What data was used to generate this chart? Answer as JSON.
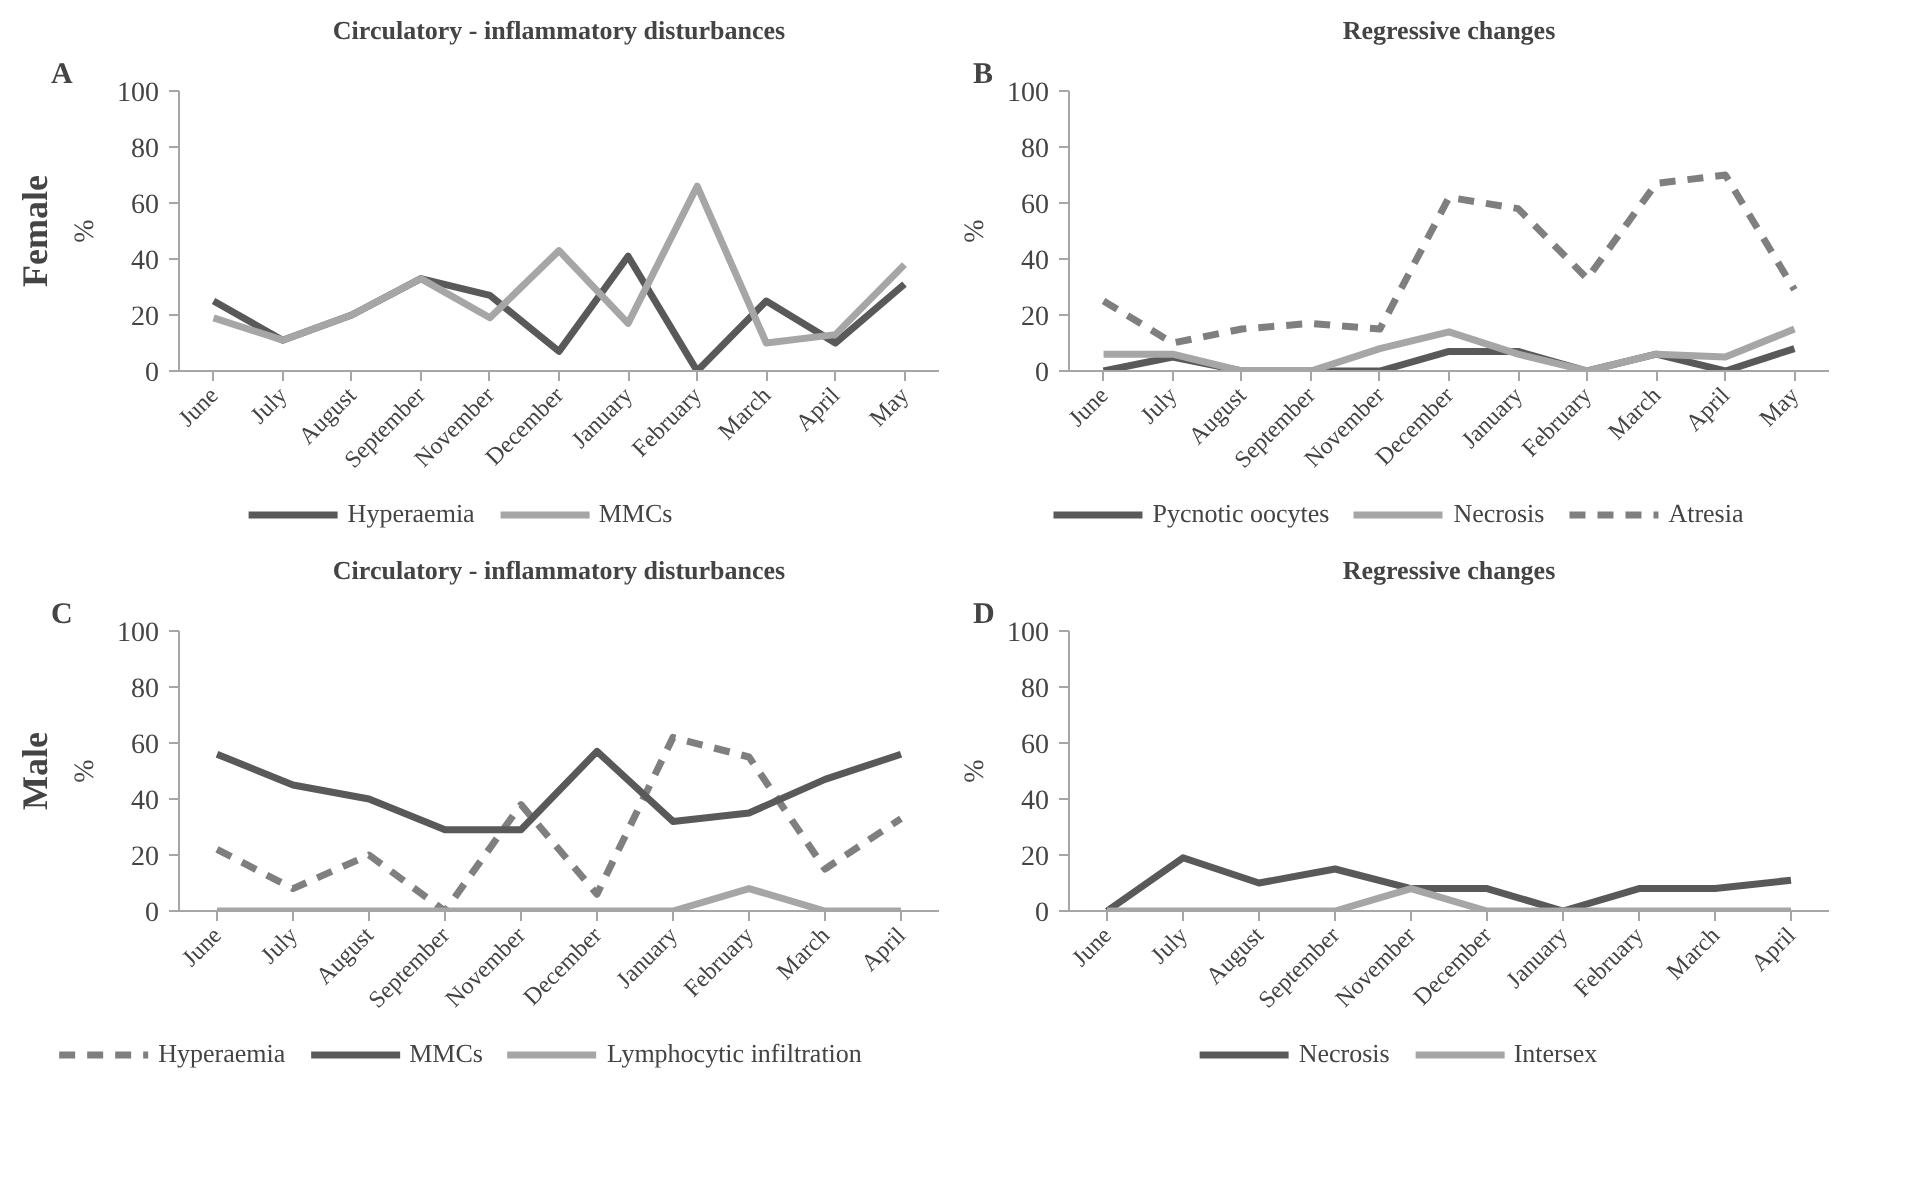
{
  "chart_data": [
    {
      "type": "line",
      "title": "Circulatory - inflammatory disturbances",
      "ylabel": "%",
      "annotations": [
        "A",
        "Female"
      ],
      "categories": [
        "June",
        "July",
        "August",
        "September",
        "November",
        "December",
        "January",
        "February",
        "March",
        "April",
        "May"
      ],
      "ylim": [
        0,
        100
      ],
      "yticks": [
        0,
        20,
        40,
        60,
        80,
        100
      ],
      "grid": false,
      "legend": "bottom",
      "series": [
        {
          "name": "Hyperaemia",
          "color": "#595959",
          "line_style": "solid",
          "values": [
            25,
            11,
            20,
            33,
            27,
            7,
            41,
            0,
            25,
            10,
            31
          ]
        },
        {
          "name": "MMCs",
          "color": "#a6a6a6",
          "line_style": "solid",
          "values": [
            19,
            11,
            20,
            33,
            19,
            43,
            17,
            66,
            10,
            13,
            38
          ]
        }
      ]
    },
    {
      "type": "line",
      "title": "Regressive changes",
      "ylabel": "%",
      "annotations": [
        "B"
      ],
      "categories": [
        "June",
        "July",
        "August",
        "September",
        "November",
        "December",
        "January",
        "February",
        "March",
        "April",
        "May"
      ],
      "ylim": [
        0,
        100
      ],
      "yticks": [
        0,
        20,
        40,
        60,
        80,
        100
      ],
      "grid": false,
      "legend": "bottom",
      "series": [
        {
          "name": "Pycnotic oocytes",
          "color": "#595959",
          "line_style": "solid",
          "values": [
            0,
            5,
            0,
            0,
            0,
            7,
            7,
            0,
            6,
            0,
            8
          ]
        },
        {
          "name": "Necrosis",
          "color": "#a6a6a6",
          "line_style": "solid",
          "values": [
            6,
            6,
            0,
            0,
            8,
            14,
            6,
            0,
            6,
            5,
            15
          ]
        },
        {
          "name": "Atresia",
          "color": "#7f7f7f",
          "line_style": "dashed",
          "values": [
            25,
            10,
            15,
            17,
            15,
            62,
            58,
            33,
            67,
            70,
            29
          ]
        }
      ]
    },
    {
      "type": "line",
      "title": "Circulatory - inflammatory disturbances",
      "ylabel": "%",
      "annotations": [
        "C",
        "Male"
      ],
      "categories": [
        "June",
        "July",
        "August",
        "September",
        "November",
        "December",
        "January",
        "February",
        "March",
        "April"
      ],
      "ylim": [
        0,
        100
      ],
      "yticks": [
        0,
        20,
        40,
        60,
        80,
        100
      ],
      "grid": false,
      "legend": "bottom",
      "series": [
        {
          "name": "Hyperaemia",
          "color": "#7f7f7f",
          "line_style": "dashed",
          "values": [
            22,
            8,
            20,
            0,
            38,
            6,
            62,
            55,
            15,
            33
          ]
        },
        {
          "name": "MMCs",
          "color": "#595959",
          "line_style": "solid",
          "values": [
            56,
            45,
            40,
            29,
            29,
            57,
            32,
            35,
            47,
            56
          ]
        },
        {
          "name": "Lymphocytic infiltration",
          "color": "#a6a6a6",
          "line_style": "solid",
          "values": [
            0,
            0,
            0,
            0,
            0,
            0,
            0,
            8,
            0,
            0
          ]
        }
      ]
    },
    {
      "type": "line",
      "title": "Regressive changes",
      "ylabel": "%",
      "annotations": [
        "D"
      ],
      "categories": [
        "June",
        "July",
        "August",
        "September",
        "November",
        "December",
        "January",
        "February",
        "March",
        "April"
      ],
      "ylim": [
        0,
        100
      ],
      "yticks": [
        0,
        20,
        40,
        60,
        80,
        100
      ],
      "grid": false,
      "legend": "bottom",
      "series": [
        {
          "name": "Necrosis",
          "color": "#595959",
          "line_style": "solid",
          "values": [
            0,
            19,
            10,
            15,
            8,
            8,
            0,
            8,
            8,
            11
          ]
        },
        {
          "name": "Intersex",
          "color": "#a6a6a6",
          "line_style": "solid",
          "values": [
            0,
            0,
            0,
            0,
            8,
            0,
            0,
            0,
            0,
            0
          ]
        }
      ]
    }
  ]
}
